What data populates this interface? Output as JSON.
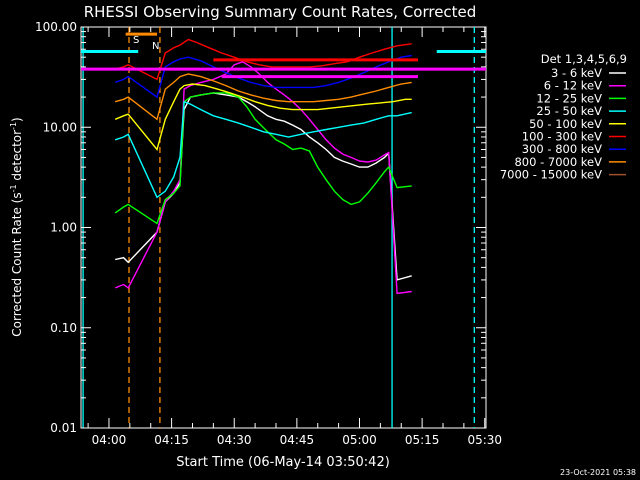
{
  "chart_data": {
    "type": "line",
    "title": "RHESSI Observing Summary Count Rates, Corrected",
    "xlabel": "Start Time (06-May-14 03:50:42)",
    "ylabel_main": "Corrected Count Rate (s",
    "ylabel_sup1": "-1",
    "ylabel_mid": " detector",
    "ylabel_sup2": "-1",
    "ylabel_end": ")",
    "y_scale": "log",
    "ylim": [
      0.01,
      100
    ],
    "y_ticks": [
      {
        "value": 0.01,
        "label": "0.01"
      },
      {
        "value": 0.1,
        "label": "0.10"
      },
      {
        "value": 1,
        "label": "1.00"
      },
      {
        "value": 10,
        "label": "10.00"
      },
      {
        "value": 100,
        "label": "100.00"
      }
    ],
    "xlim_minutes": [
      3.3,
      100.3
    ],
    "x_ticks": [
      {
        "value": 10,
        "label": "04:00"
      },
      {
        "value": 25,
        "label": "04:15"
      },
      {
        "value": 40,
        "label": "04:30"
      },
      {
        "value": 55,
        "label": "04:45"
      },
      {
        "value": 70,
        "label": "05:00"
      },
      {
        "value": 85,
        "label": "05:15"
      },
      {
        "value": 100,
        "label": "05:30"
      }
    ],
    "legend_title": "Det 1,3,4,5,6,9",
    "legend_placement": "right",
    "footer_date": "23-Oct-2021 05:38",
    "markers": [
      {
        "label": "S",
        "color": "#ff8c00"
      },
      {
        "label": "N",
        "color": "#00ffff"
      }
    ],
    "reference_lines": [
      {
        "color": "#00ffff",
        "value": 57,
        "x0": 3.3,
        "x1": 17.0
      },
      {
        "color": "#00ffff",
        "value": 57,
        "x0": 88.5,
        "x1": 100.3
      },
      {
        "color": "#ff00ff",
        "value": 38,
        "x0": 3.3,
        "x1": 100.3
      },
      {
        "color": "#ff8c00",
        "value": 85,
        "x0": 14.0,
        "x1": 21.5
      },
      {
        "color": "#ff0000",
        "value": 47,
        "x0": 35.0,
        "x1": 84.0
      },
      {
        "color": "#ff00ff",
        "value": 32,
        "x0": 37.0,
        "x1": 84.0
      }
    ],
    "vertical_lines": [
      {
        "x": 3.8,
        "color": "#00ffff",
        "dashed": false
      },
      {
        "x": 14.8,
        "color": "#ff8c00",
        "dashed": true
      },
      {
        "x": 22.2,
        "color": "#ff8c00",
        "dashed": true
      },
      {
        "x": 77.8,
        "color": "#00ffff",
        "dashed": false
      },
      {
        "x": 97.5,
        "color": "#00ffff",
        "dashed": true
      }
    ],
    "series": [
      {
        "name": "3 - 6 keV",
        "color": "#ffffff",
        "values": [
          [
            11.5,
            0.48
          ],
          [
            13.5,
            0.5
          ],
          [
            14.6,
            0.45
          ],
          [
            21.5,
            0.9
          ],
          [
            23.5,
            1.8
          ],
          [
            25.5,
            2.2
          ],
          [
            27.0,
            2.8
          ],
          [
            28.0,
            15
          ],
          [
            29.5,
            20
          ],
          [
            32,
            21
          ],
          [
            35,
            22
          ],
          [
            38,
            21
          ],
          [
            41,
            20
          ],
          [
            43,
            18
          ],
          [
            45,
            16
          ],
          [
            48,
            13
          ],
          [
            50,
            12
          ],
          [
            52,
            11.5
          ],
          [
            54,
            10.5
          ],
          [
            56,
            9.5
          ],
          [
            58,
            8
          ],
          [
            60,
            7
          ],
          [
            62,
            6
          ],
          [
            64,
            5
          ],
          [
            66,
            4.6
          ],
          [
            68,
            4.3
          ],
          [
            70,
            4.0
          ],
          [
            72,
            4.0
          ],
          [
            74,
            4.4
          ],
          [
            76,
            5.0
          ],
          [
            77,
            5.5
          ],
          [
            79,
            0.3
          ],
          [
            82.5,
            0.33
          ]
        ]
      },
      {
        "name": "6 - 12 keV",
        "color": "#ff00ff",
        "values": [
          [
            11.5,
            0.25
          ],
          [
            13.5,
            0.27
          ],
          [
            14.6,
            0.25
          ],
          [
            21.5,
            0.9
          ],
          [
            23.5,
            1.8
          ],
          [
            25.5,
            2.3
          ],
          [
            27.0,
            3.0
          ],
          [
            28.0,
            24
          ],
          [
            29.5,
            26
          ],
          [
            32,
            28
          ],
          [
            35,
            30
          ],
          [
            38,
            34
          ],
          [
            40,
            42
          ],
          [
            42,
            45
          ],
          [
            44,
            40
          ],
          [
            46,
            34
          ],
          [
            48,
            28
          ],
          [
            50,
            24
          ],
          [
            52,
            21
          ],
          [
            54,
            18
          ],
          [
            56,
            15
          ],
          [
            58,
            12
          ],
          [
            60,
            9.5
          ],
          [
            62,
            7.5
          ],
          [
            64,
            6.2
          ],
          [
            66,
            5.4
          ],
          [
            68,
            5.0
          ],
          [
            70,
            4.6
          ],
          [
            72,
            4.5
          ],
          [
            74,
            4.7
          ],
          [
            76,
            5.3
          ],
          [
            77,
            5.6
          ],
          [
            79,
            0.22
          ],
          [
            82.5,
            0.23
          ]
        ]
      },
      {
        "name": "12 - 25 keV",
        "color": "#00ff00",
        "values": [
          [
            11.5,
            1.4
          ],
          [
            13.5,
            1.6
          ],
          [
            14.6,
            1.7
          ],
          [
            21.5,
            1.1
          ],
          [
            23.5,
            1.9
          ],
          [
            25.5,
            2.2
          ],
          [
            27.0,
            2.6
          ],
          [
            28.0,
            18
          ],
          [
            29.5,
            20
          ],
          [
            32,
            21
          ],
          [
            35,
            22
          ],
          [
            38,
            22
          ],
          [
            41,
            20
          ],
          [
            43,
            16
          ],
          [
            45,
            12
          ],
          [
            48,
            9
          ],
          [
            50,
            7.5
          ],
          [
            52,
            6.8
          ],
          [
            54,
            6.0
          ],
          [
            56,
            6.2
          ],
          [
            58,
            5.8
          ],
          [
            60,
            4.0
          ],
          [
            62,
            3.0
          ],
          [
            64,
            2.3
          ],
          [
            66,
            1.9
          ],
          [
            68,
            1.7
          ],
          [
            70,
            1.8
          ],
          [
            72,
            2.2
          ],
          [
            74,
            2.8
          ],
          [
            76,
            3.6
          ],
          [
            77,
            4.0
          ],
          [
            79,
            2.5
          ],
          [
            82.5,
            2.6
          ]
        ]
      },
      {
        "name": "25 - 50 keV",
        "color": "#00ffff",
        "values": [
          [
            11.5,
            7.5
          ],
          [
            13.5,
            8.0
          ],
          [
            14.6,
            8.5
          ],
          [
            21.5,
            2.0
          ],
          [
            23.5,
            2.3
          ],
          [
            25.5,
            3.2
          ],
          [
            27.0,
            5.0
          ],
          [
            28.0,
            18
          ],
          [
            29.5,
            17
          ],
          [
            32,
            15
          ],
          [
            35,
            13
          ],
          [
            38,
            12
          ],
          [
            41,
            11
          ],
          [
            44,
            10
          ],
          [
            47,
            9
          ],
          [
            50,
            8.5
          ],
          [
            53,
            8.0
          ],
          [
            56,
            8.5
          ],
          [
            59,
            9.0
          ],
          [
            62,
            9.5
          ],
          [
            65,
            10
          ],
          [
            68,
            10.5
          ],
          [
            71,
            11
          ],
          [
            74,
            12
          ],
          [
            77,
            13
          ],
          [
            79,
            13
          ],
          [
            82.5,
            14
          ]
        ]
      },
      {
        "name": "50 - 100 keV",
        "color": "#ffff00",
        "values": [
          [
            11.5,
            12
          ],
          [
            13.5,
            13
          ],
          [
            14.6,
            13.5
          ],
          [
            21.5,
            6
          ],
          [
            23.5,
            12
          ],
          [
            25.5,
            18
          ],
          [
            27.0,
            24
          ],
          [
            28.0,
            26
          ],
          [
            30,
            27
          ],
          [
            33,
            26
          ],
          [
            36,
            24
          ],
          [
            39,
            22
          ],
          [
            42,
            20
          ],
          [
            45,
            18
          ],
          [
            48,
            16.5
          ],
          [
            51,
            15.5
          ],
          [
            54,
            15
          ],
          [
            57,
            15
          ],
          [
            60,
            15
          ],
          [
            63,
            15.5
          ],
          [
            66,
            16
          ],
          [
            69,
            16.5
          ],
          [
            72,
            17
          ],
          [
            75,
            17.5
          ],
          [
            78,
            18
          ],
          [
            81,
            19
          ],
          [
            82.5,
            19
          ]
        ]
      },
      {
        "name": "100 - 300 keV",
        "color": "#ff0000",
        "values": [
          [
            11.5,
            38
          ],
          [
            13.5,
            40
          ],
          [
            14.6,
            42
          ],
          [
            21.5,
            30
          ],
          [
            23.5,
            55
          ],
          [
            25.5,
            62
          ],
          [
            27.0,
            66
          ],
          [
            29,
            75
          ],
          [
            31,
            70
          ],
          [
            34,
            62
          ],
          [
            37,
            55
          ],
          [
            40,
            50
          ],
          [
            43,
            45
          ],
          [
            46,
            42
          ],
          [
            49,
            40
          ],
          [
            52,
            40
          ],
          [
            55,
            40
          ],
          [
            58,
            40
          ],
          [
            61,
            41
          ],
          [
            64,
            43
          ],
          [
            67,
            45
          ],
          [
            70,
            50
          ],
          [
            73,
            55
          ],
          [
            76,
            60
          ],
          [
            79,
            65
          ],
          [
            82.5,
            68
          ]
        ]
      },
      {
        "name": "300 - 800 keV",
        "color": "#0000ff",
        "values": [
          [
            11.5,
            28
          ],
          [
            13.5,
            30
          ],
          [
            14.6,
            32
          ],
          [
            21.5,
            20
          ],
          [
            23.5,
            40
          ],
          [
            25.5,
            45
          ],
          [
            27.0,
            48
          ],
          [
            29,
            50
          ],
          [
            32,
            46
          ],
          [
            35,
            40
          ],
          [
            38,
            35
          ],
          [
            41,
            31
          ],
          [
            44,
            28
          ],
          [
            47,
            26
          ],
          [
            50,
            25
          ],
          [
            53,
            25
          ],
          [
            56,
            25
          ],
          [
            59,
            25
          ],
          [
            62,
            26
          ],
          [
            65,
            28
          ],
          [
            68,
            31
          ],
          [
            71,
            35
          ],
          [
            74,
            40
          ],
          [
            77,
            45
          ],
          [
            80,
            50
          ],
          [
            82.5,
            52
          ]
        ]
      },
      {
        "name": "800 - 7000 keV",
        "color": "#ff8c00",
        "values": [
          [
            11.5,
            18
          ],
          [
            13.5,
            19
          ],
          [
            14.6,
            20
          ],
          [
            21.5,
            12
          ],
          [
            23.5,
            24
          ],
          [
            25.5,
            28
          ],
          [
            27.0,
            32
          ],
          [
            29,
            34
          ],
          [
            32,
            32
          ],
          [
            35,
            29
          ],
          [
            38,
            26
          ],
          [
            41,
            23
          ],
          [
            44,
            21
          ],
          [
            47,
            19.5
          ],
          [
            50,
            18.5
          ],
          [
            53,
            18
          ],
          [
            56,
            18
          ],
          [
            59,
            18
          ],
          [
            62,
            18.5
          ],
          [
            65,
            19
          ],
          [
            68,
            20
          ],
          [
            71,
            21.5
          ],
          [
            74,
            23
          ],
          [
            77,
            25
          ],
          [
            80,
            27
          ],
          [
            82.5,
            28
          ]
        ]
      },
      {
        "name": "7000 - 15000 keV",
        "color": "#a0522d",
        "values": []
      }
    ]
  }
}
